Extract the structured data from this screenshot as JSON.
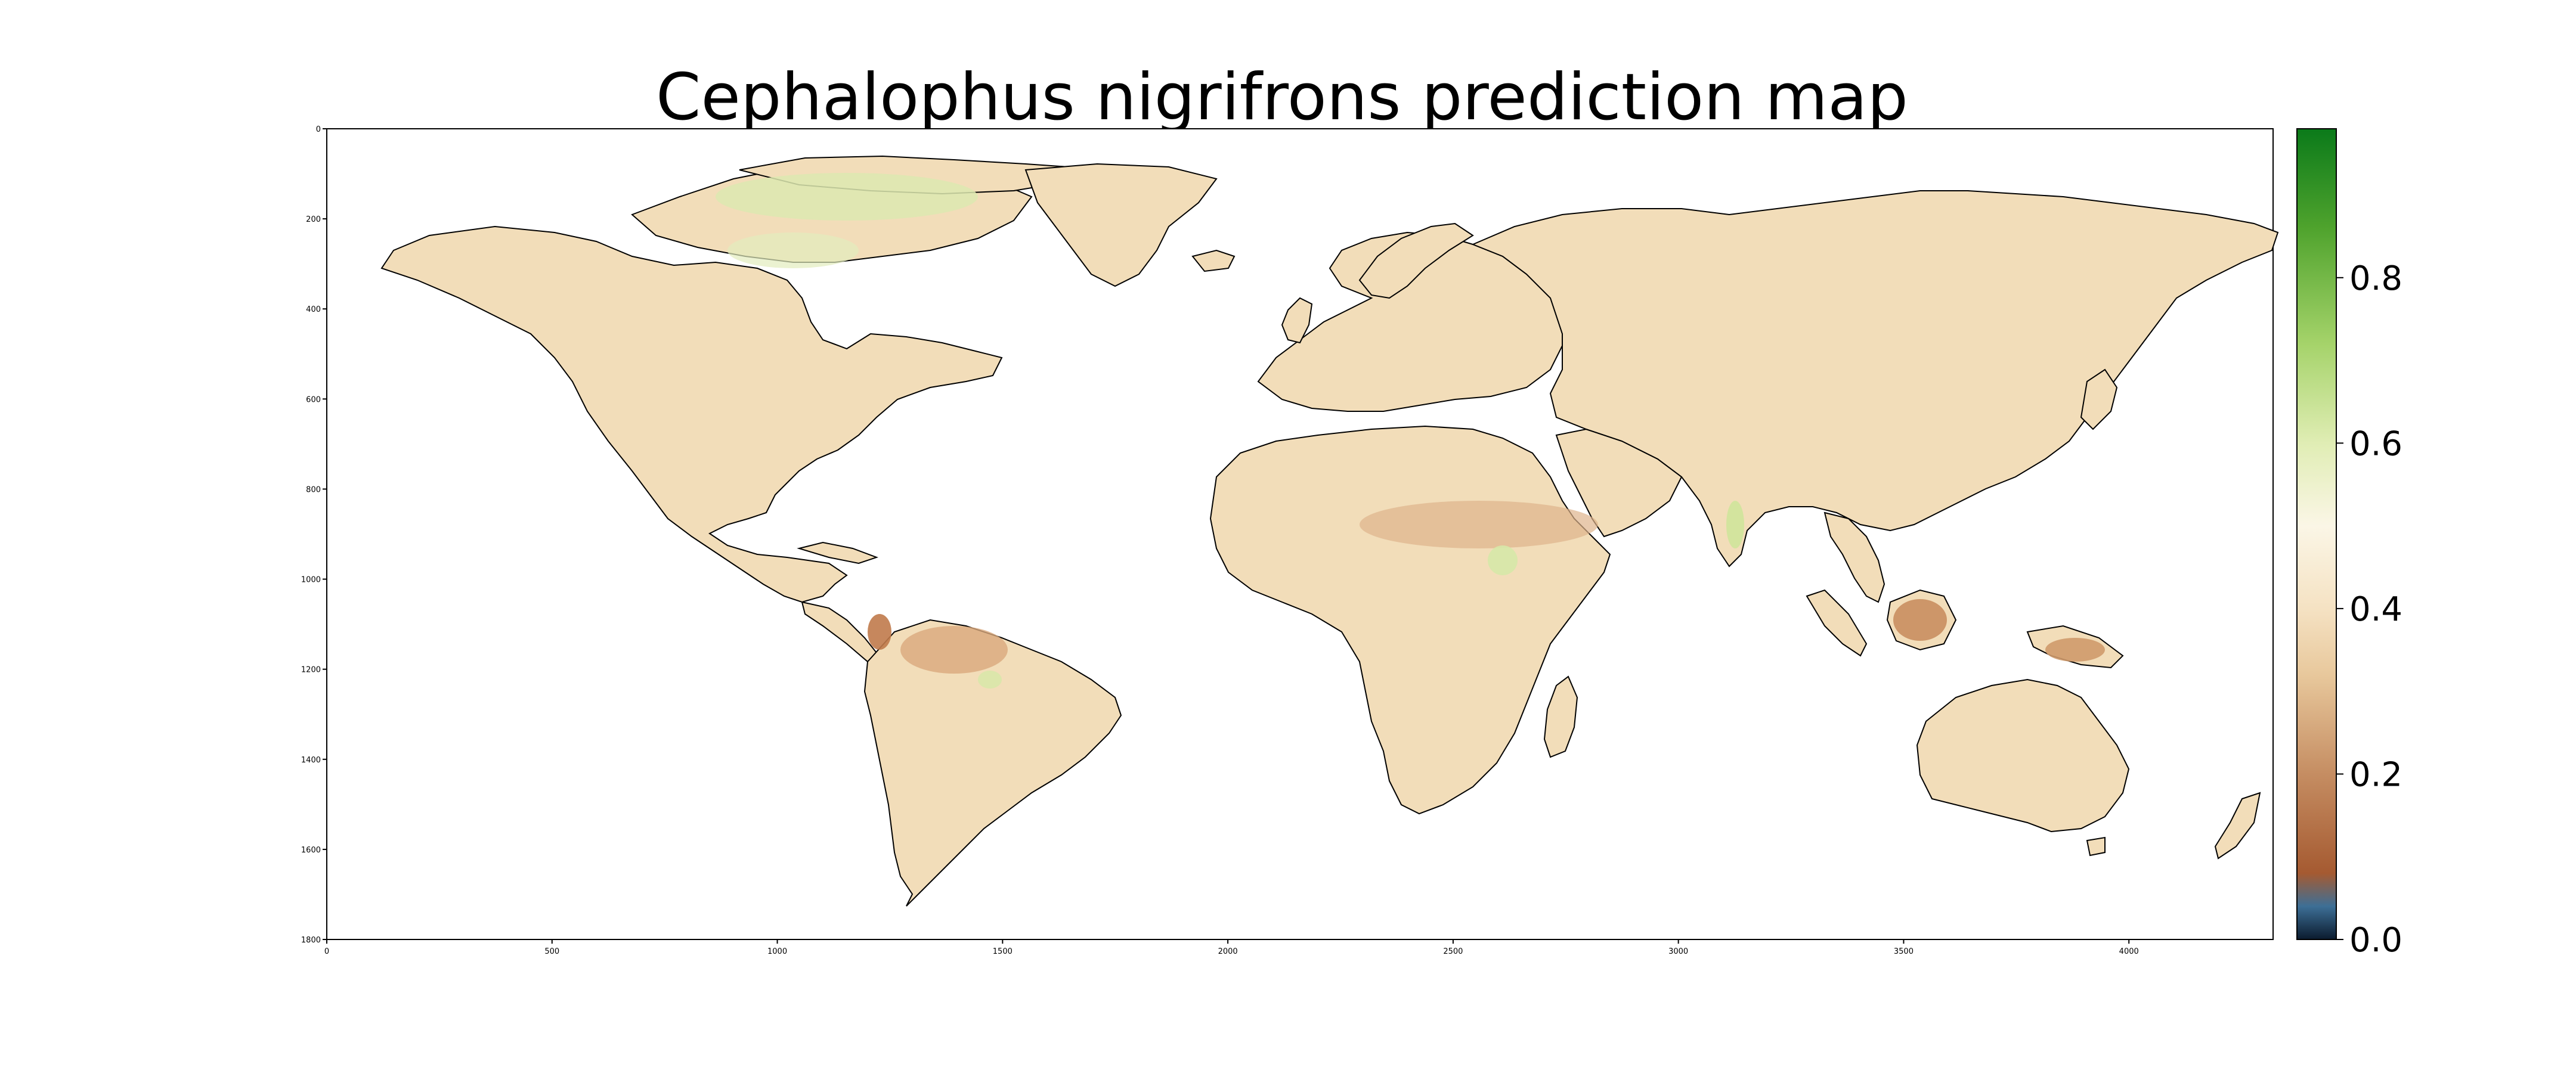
{
  "title": "Cephalophus nigrifrons prediction map",
  "x_axis": {
    "ticks": [
      0,
      500,
      1000,
      1500,
      2000,
      2500,
      3000,
      3500,
      4000
    ],
    "range": [
      0,
      4320
    ]
  },
  "y_axis": {
    "ticks": [
      0,
      200,
      400,
      600,
      800,
      1000,
      1200,
      1400,
      1600,
      1800
    ],
    "range": [
      0,
      1800
    ],
    "inverted": true
  },
  "colorbar": {
    "ticks": [
      0.0,
      0.2,
      0.4,
      0.6,
      0.8
    ],
    "tick_labels": [
      "0.0",
      "0.2",
      "0.4",
      "0.6",
      "0.8"
    ],
    "range": [
      0.0,
      0.98
    ],
    "colormap": [
      {
        "value": 0.0,
        "color": "#0b1b2e"
      },
      {
        "value": 0.04,
        "color": "#3d6f96"
      },
      {
        "value": 0.08,
        "color": "#a55a31"
      },
      {
        "value": 0.2,
        "color": "#c58d62"
      },
      {
        "value": 0.32,
        "color": "#e8c89c"
      },
      {
        "value": 0.4,
        "color": "#f5e2c3"
      },
      {
        "value": 0.5,
        "color": "#fbf6e6"
      },
      {
        "value": 0.6,
        "color": "#e0edb4"
      },
      {
        "value": 0.72,
        "color": "#a5d36a"
      },
      {
        "value": 0.86,
        "color": "#4fa32d"
      },
      {
        "value": 0.98,
        "color": "#0b7a1a"
      }
    ]
  },
  "colors": {
    "land": "#f2ddb9",
    "land_dark": "#d8a97c",
    "land_green": "#dde9b0",
    "coast": "#000000",
    "background": "#ffffff"
  }
}
